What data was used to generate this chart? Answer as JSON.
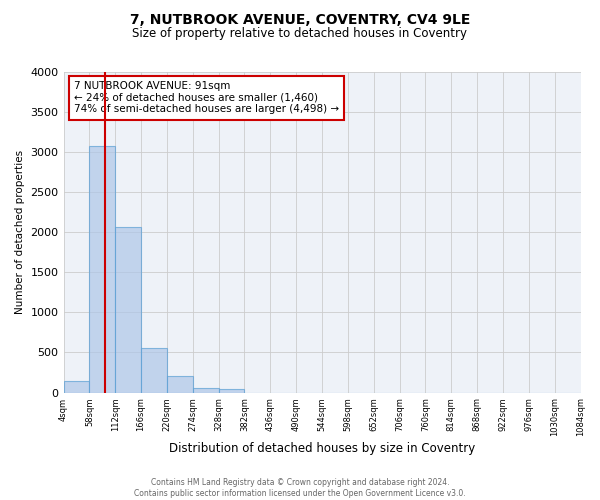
{
  "title": "7, NUTBROOK AVENUE, COVENTRY, CV4 9LE",
  "subtitle": "Size of property relative to detached houses in Coventry",
  "xlabel": "Distribution of detached houses by size in Coventry",
  "ylabel": "Number of detached properties",
  "bin_edges": [
    4,
    58,
    112,
    166,
    220,
    274,
    328,
    382,
    436,
    490,
    544,
    598,
    652,
    706,
    760,
    814,
    868,
    922,
    976,
    1030,
    1084
  ],
  "bar_heights": [
    150,
    3070,
    2060,
    560,
    210,
    60,
    40,
    0,
    0,
    0,
    0,
    0,
    0,
    0,
    0,
    0,
    0,
    0,
    0,
    0
  ],
  "bar_color": "#aec6e8",
  "bar_edge_color": "#5a9fd4",
  "bar_edge_width": 0.8,
  "bar_alpha": 0.7,
  "property_line_x": 91,
  "property_line_color": "#cc0000",
  "annotation_line1": "7 NUTBROOK AVENUE: 91sqm",
  "annotation_line2": "← 24% of detached houses are smaller (1,460)",
  "annotation_line3": "74% of semi-detached houses are larger (4,498) →",
  "annotation_box_edgecolor": "#cc0000",
  "ylim": [
    0,
    4000
  ],
  "yticks": [
    0,
    500,
    1000,
    1500,
    2000,
    2500,
    3000,
    3500,
    4000
  ],
  "grid_color": "#cccccc",
  "bg_color": "#eef2f8",
  "footnote": "Contains HM Land Registry data © Crown copyright and database right 2024.\nContains public sector information licensed under the Open Government Licence v3.0.",
  "tick_labels": [
    "4sqm",
    "58sqm",
    "112sqm",
    "166sqm",
    "220sqm",
    "274sqm",
    "328sqm",
    "382sqm",
    "436sqm",
    "490sqm",
    "544sqm",
    "598sqm",
    "652sqm",
    "706sqm",
    "760sqm",
    "814sqm",
    "868sqm",
    "922sqm",
    "976sqm",
    "1030sqm",
    "1084sqm"
  ]
}
